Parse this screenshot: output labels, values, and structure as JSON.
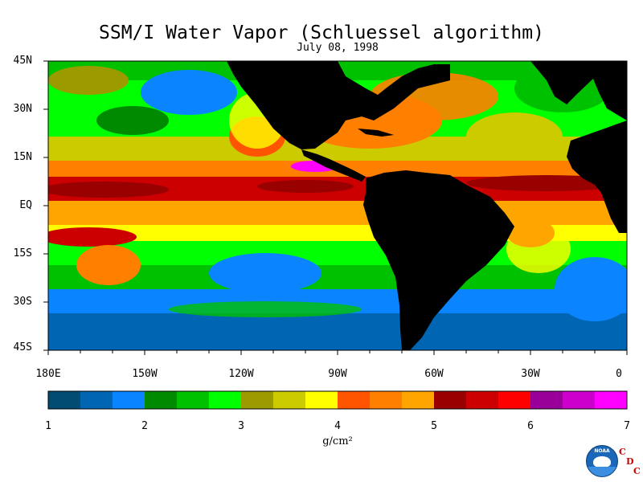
{
  "title": "SSM/I Water Vapor (Schluessel algorithm)",
  "date": "July 08, 1998",
  "lat_labels": [
    "45N",
    "30N",
    "15N",
    "EQ",
    "15S",
    "30S",
    "45S"
  ],
  "lon_labels": [
    "180E",
    "150W",
    "120W",
    "90W",
    "60W",
    "30W",
    "0"
  ],
  "colorbar": {
    "colors": [
      "#004c73",
      "#0066b3",
      "#0a85ff",
      "#008a00",
      "#00c100",
      "#00ff00",
      "#9b9b00",
      "#cbcb00",
      "#ffff00",
      "#ff5500",
      "#ff8000",
      "#ffa500",
      "#990000",
      "#cc0000",
      "#ff0000",
      "#990099",
      "#cc00cc",
      "#ff00ff"
    ],
    "tick_labels": [
      "1",
      "2",
      "3",
      "4",
      "5",
      "6",
      "7"
    ],
    "min": 1,
    "max": 7,
    "units": "g/cm²"
  },
  "logo": {
    "noaa": "NOAA",
    "cdc": [
      "C",
      "D",
      "C"
    ]
  }
}
